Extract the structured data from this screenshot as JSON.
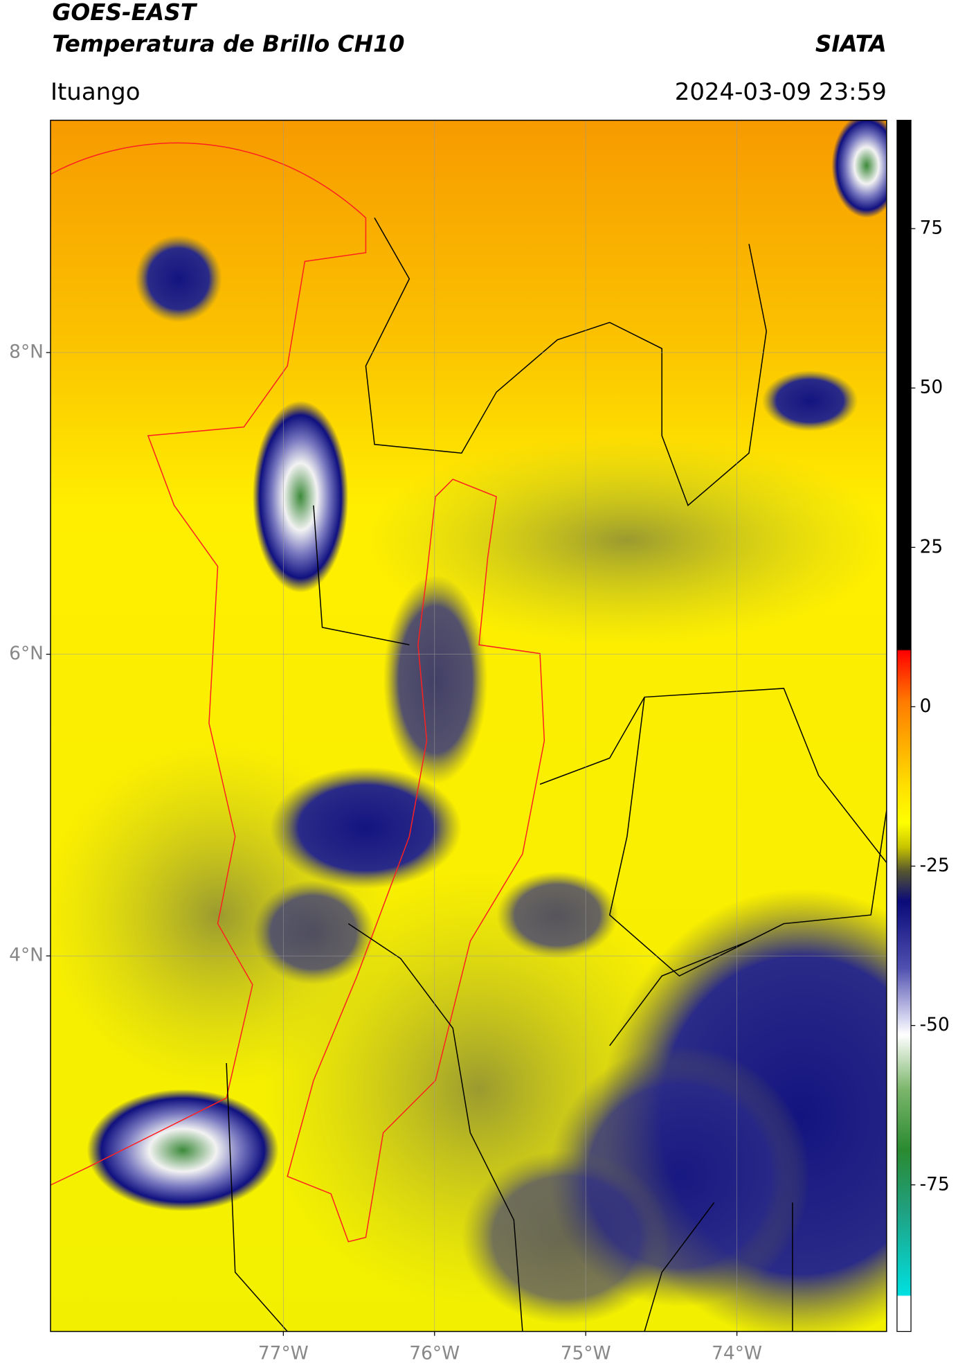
{
  "header": {
    "title": "GOES-EAST",
    "subtitle": "Temperatura de Brillo CH10",
    "source": "SIATA",
    "location": "Ituango",
    "datetime": "2024-03-09 23:59"
  },
  "map": {
    "latlim": [
      1.51,
      9.54
    ],
    "lonlim": [
      -78.54,
      -73.01
    ],
    "latticks": [
      {
        "value": 8,
        "label": "8°N"
      },
      {
        "value": 6,
        "label": "6°N"
      },
      {
        "value": 4,
        "label": "4°N"
      }
    ],
    "lonticks": [
      {
        "value": -77,
        "label": "77°W"
      },
      {
        "value": -76,
        "label": "76°W"
      },
      {
        "value": -75,
        "label": "75°W"
      },
      {
        "value": -74,
        "label": "74°W"
      }
    ],
    "colorbar": {
      "lim": [
        -98,
        92
      ],
      "ticks": [
        75,
        50,
        25,
        0,
        -25,
        -50,
        -75
      ]
    }
  }
}
